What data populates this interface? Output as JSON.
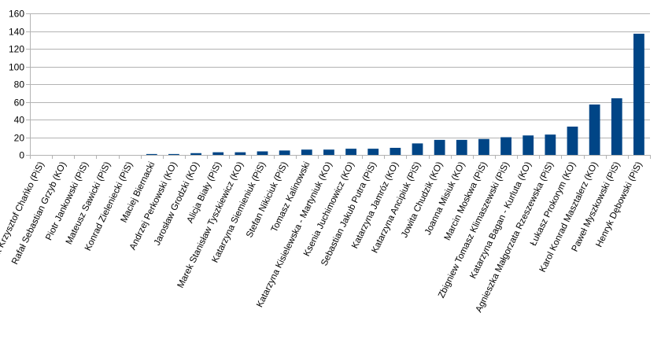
{
  "chart_data": {
    "type": "bar",
    "title": "",
    "xlabel": "",
    "ylabel": "",
    "ylim": [
      0,
      160
    ],
    "yticks": [
      0,
      20,
      40,
      60,
      80,
      100,
      120,
      140,
      160
    ],
    "grid": true,
    "legend": "none",
    "bar_color": "#004586",
    "grid_color": "#b3b3b3",
    "categories": [
      "Jacek Krzysztof Chańko (PiS)",
      "Rafał Sebastian Grzyb (KO)",
      "Piotr Jankowski (PiS)",
      "Mateusz Sawicki (PiS)",
      "Konrad Zieleniecki (PiS)",
      "Maciej Biernacki",
      "Andrzej Perkowski (KO)",
      "Jarosław Grodzki (KO)",
      "Alicja Biały (PiS)",
      "Marek Stanisław Tyszkiewicz (KO)",
      "Katarzyna Siemieniuk (PiS)",
      "Stefan Nikiciuk (PiS)",
      "Tomasz Kalinowski",
      "Katarzyna Kisielewska - Martyniuk (KO)",
      "Ksenia Juchimowicz (KO)",
      "Sebastian Jakub Putra (PiS)",
      "Katarzyna Jamróz (KO)",
      "Katarzyna Ancipiuk (PiS)",
      "Jowita Chudzik (KO)",
      "Joanna Misiuk (KO)",
      "Marcin Moskwa (PiS)",
      "Zbigniew Tomasz Klimaszewski (PiS)",
      "Katarzyna Bagan - Kurluta (KO)",
      "Agnieszka Małgorzata Rzeszewska (PiS)",
      "Łukasz Prokorym (KO)",
      "Karol Konrad Masztalerz (KO)",
      "Paweł Myszkowski (PiS)",
      "Henryk Dębowski (PiS)"
    ],
    "values": [
      0,
      0,
      0,
      0,
      0,
      1,
      1,
      2,
      3,
      3,
      4,
      5,
      6,
      6,
      7,
      7,
      8,
      13,
      17,
      17,
      18,
      20,
      22,
      23,
      32,
      57,
      64,
      137
    ]
  }
}
